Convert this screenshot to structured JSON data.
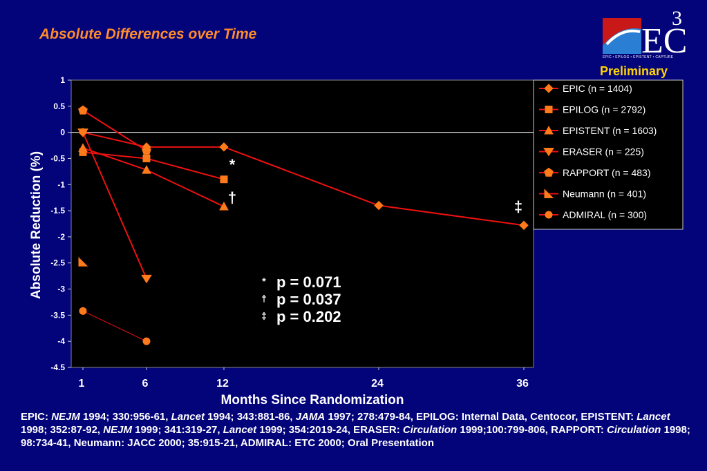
{
  "title": "Absolute Differences over Time",
  "logo": {
    "name": "E3C logo",
    "text": "EC",
    "superscript": "3",
    "subtitle": "EPIC • EPILOG • EPISTENT • CAPTURE"
  },
  "badge": "Preliminary",
  "chart_data": {
    "type": "line",
    "xlabel": "Months Since Randomization",
    "ylabel": "Absolute Reduction (%)",
    "x_categories": [
      "1",
      "6",
      "12",
      "24",
      "36"
    ],
    "y_ticks": [
      "1",
      "0.5",
      "0",
      "-0.5",
      "-1",
      "-1.5",
      "-2",
      "-2.5",
      "-3",
      "-3.5",
      "-4",
      "-4.5"
    ],
    "ylim": [
      -4.5,
      1
    ],
    "grid": false,
    "zero_line": true,
    "legend_position": "right",
    "series": [
      {
        "name": "EPIC (n = 1404)",
        "marker": "diamond",
        "points": [
          [
            1,
            0.0
          ],
          [
            6,
            -0.28
          ],
          [
            12,
            -0.28
          ],
          [
            24,
            -1.4
          ],
          [
            36,
            -1.78
          ]
        ]
      },
      {
        "name": "EPILOG (n = 2792)",
        "marker": "square",
        "points": [
          [
            1,
            -0.38
          ],
          [
            6,
            -0.5
          ],
          [
            12,
            -0.9
          ]
        ]
      },
      {
        "name": "EPISTENT (n = 1603)",
        "marker": "triangle-up",
        "points": [
          [
            1,
            -0.3
          ],
          [
            6,
            -0.72
          ],
          [
            12,
            -1.42
          ]
        ]
      },
      {
        "name": "ERASER (n = 225)",
        "marker": "triangle-down",
        "points": [
          [
            1,
            0.0
          ],
          [
            6,
            -2.8
          ]
        ]
      },
      {
        "name": "RAPPORT (n = 483)",
        "marker": "pentagon",
        "points": [
          [
            1,
            0.42
          ],
          [
            6,
            -0.35
          ]
        ]
      },
      {
        "name": "Neumann (n = 401)",
        "marker": "corner-triangle",
        "points": [
          [
            1,
            -2.48
          ]
        ]
      },
      {
        "name": "ADMIRAL (n = 300)",
        "marker": "circle",
        "points": [
          [
            1,
            -3.42
          ],
          [
            6,
            -4.0
          ]
        ]
      }
    ],
    "point_annotations": [
      {
        "symbol": "*",
        "x": 12,
        "y": -0.72
      },
      {
        "symbol": "†",
        "x": 12,
        "y": -1.35
      },
      {
        "symbol": "‡",
        "x": 36,
        "y": -1.52
      }
    ],
    "p_values": [
      {
        "symbol": "*",
        "text": "p = 0.071"
      },
      {
        "symbol": "†",
        "text": "p = 0.037"
      },
      {
        "symbol": "‡",
        "text": "p = 0.202"
      }
    ],
    "colors": {
      "line": "#ee1111",
      "marker": "#ff7a1a",
      "plot_bg": "#000000",
      "text": "#ffffff"
    }
  },
  "references": [
    {
      "t": "EPIC: ",
      "i": false
    },
    {
      "t": "NEJM",
      "i": true
    },
    {
      "t": " 1994; 330:956-61, ",
      "i": false
    },
    {
      "t": "Lancet",
      "i": true
    },
    {
      "t": " 1994; 343:881-86, ",
      "i": false
    },
    {
      "t": "JAMA",
      "i": true
    },
    {
      "t": " 1997; 278:479-84, EPILOG: Internal Data, Centocor, EPISTENT: ",
      "i": false
    },
    {
      "t": "Lancet",
      "i": true
    },
    {
      "t": " 1998; 352:87-92, ",
      "i": false
    },
    {
      "t": "NEJM",
      "i": true
    },
    {
      "t": " 1999; 341:319-27, ",
      "i": false
    },
    {
      "t": "Lancet",
      "i": true
    },
    {
      "t": " 1999; 354:2019-24, ERASER: ",
      "i": false
    },
    {
      "t": "Circulation",
      "i": true
    },
    {
      "t": " 1999;100:799-806, RAPPORT: ",
      "i": false
    },
    {
      "t": "Circulation",
      "i": true
    },
    {
      "t": " 1998; 98:734-41, Neumann: JACC 2000; 35:915-21, ADMIRAL: ETC 2000; Oral Presentation",
      "i": false
    }
  ]
}
